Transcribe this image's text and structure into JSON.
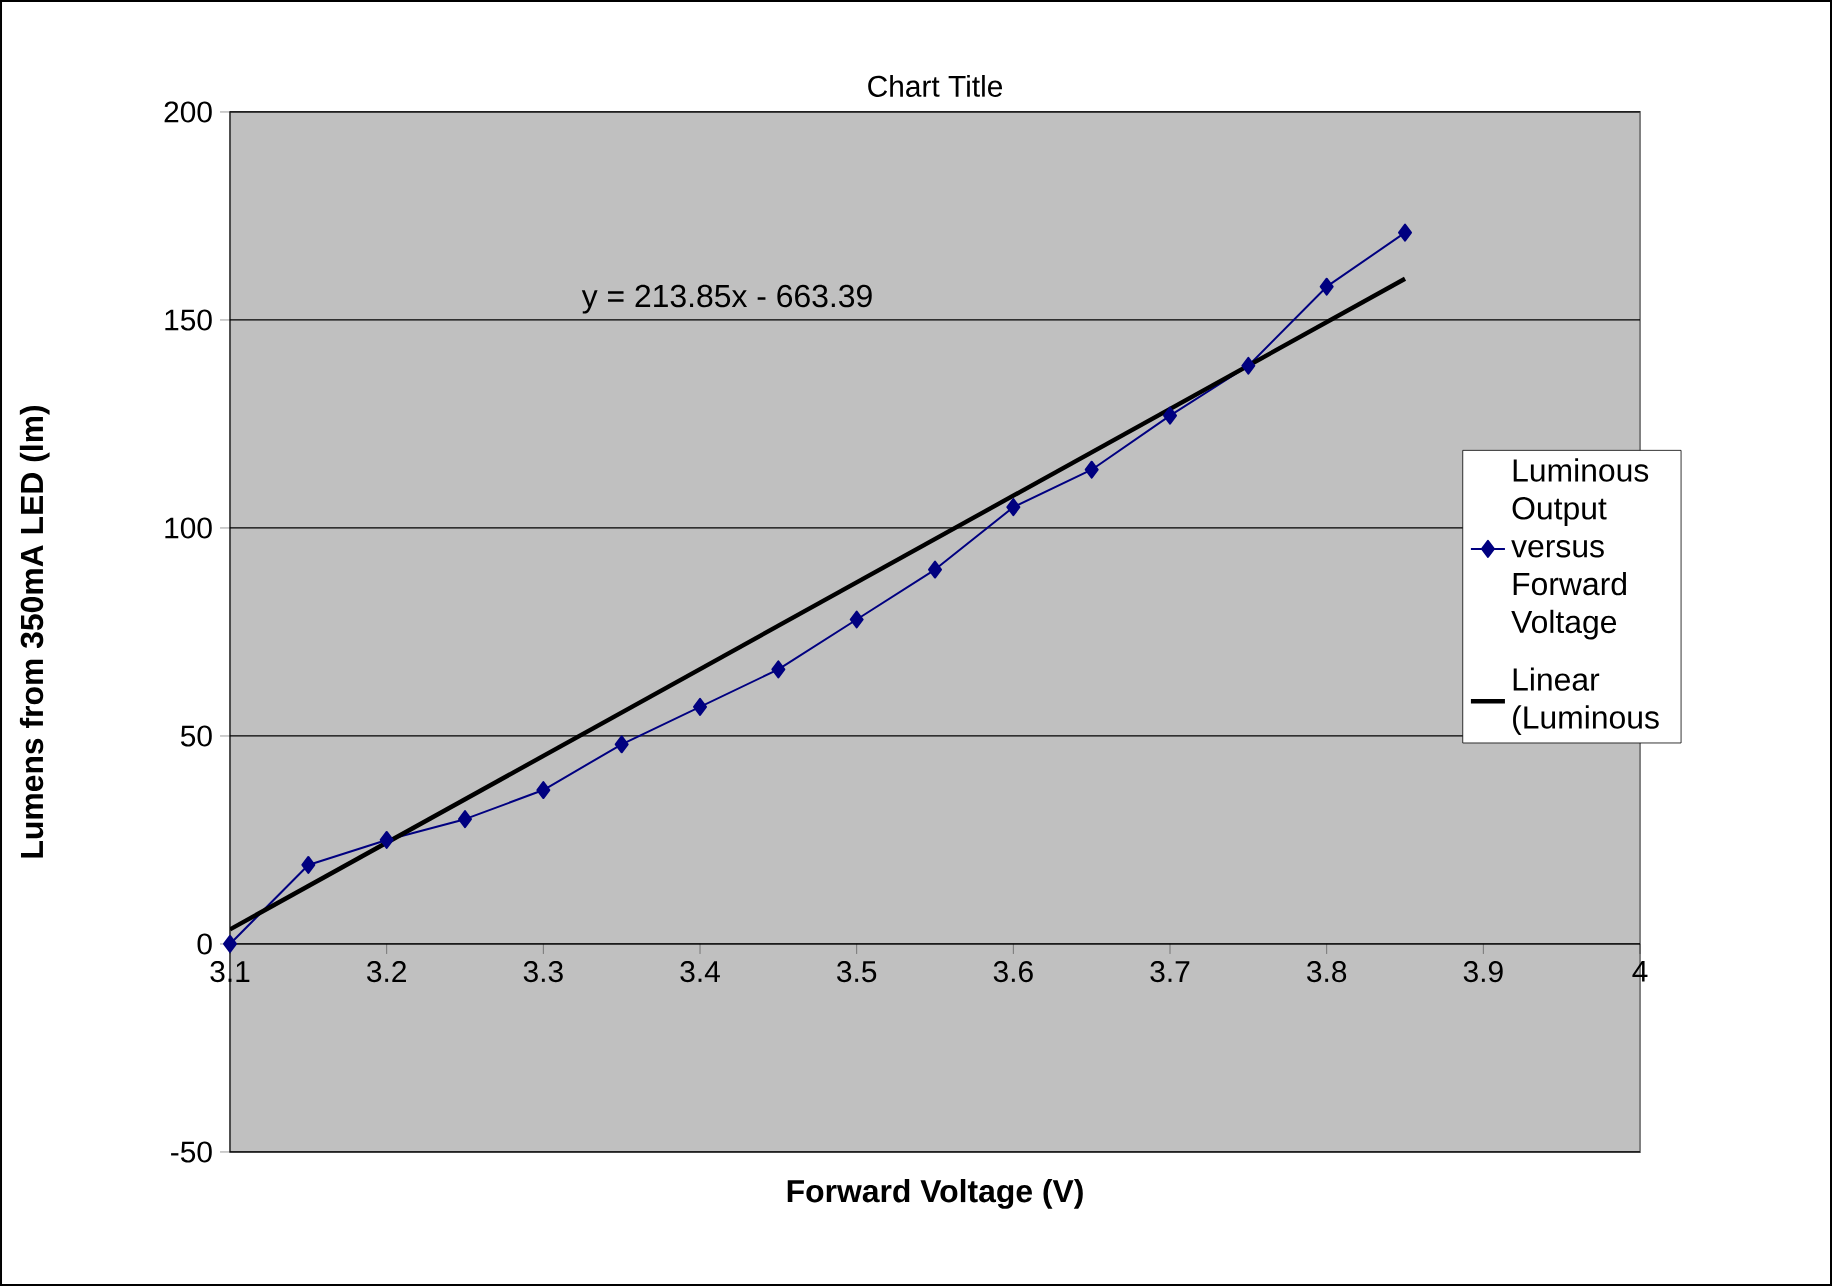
{
  "chart_data": {
    "type": "line",
    "title": "Chart Title",
    "xlabel": "Forward Voltage (V)",
    "ylabel": "Lumens from 350mA LED (lm)",
    "annotations": [
      "y = 213.85x - 663.39"
    ],
    "series": [
      {
        "name": "Luminous Output versus Forward Voltage",
        "color": "#000080",
        "marker": "diamond",
        "line_style": "solid",
        "x": [
          3.1,
          3.15,
          3.2,
          3.25,
          3.3,
          3.35,
          3.4,
          3.45,
          3.5,
          3.55,
          3.6,
          3.65,
          3.7,
          3.75,
          3.8,
          3.85
        ],
        "values": [
          0,
          19,
          25,
          30,
          37,
          48,
          57,
          66,
          78,
          90,
          105,
          114,
          127,
          139,
          158,
          171
        ]
      },
      {
        "name": "Linear (Luminous",
        "color": "#000000",
        "marker": "none",
        "line_style": "solid",
        "x": [
          3.1,
          3.85
        ],
        "values": [
          3.5,
          159.9
        ]
      }
    ],
    "xlim": [
      3.1,
      4
    ],
    "ylim": [
      -50,
      200
    ],
    "xticks": [
      3.1,
      3.2,
      3.3,
      3.4,
      3.5,
      3.6,
      3.7,
      3.8,
      3.9,
      4
    ],
    "yticks": [
      -50,
      0,
      50,
      100,
      150,
      200
    ],
    "grid": "y",
    "legend": "right"
  }
}
